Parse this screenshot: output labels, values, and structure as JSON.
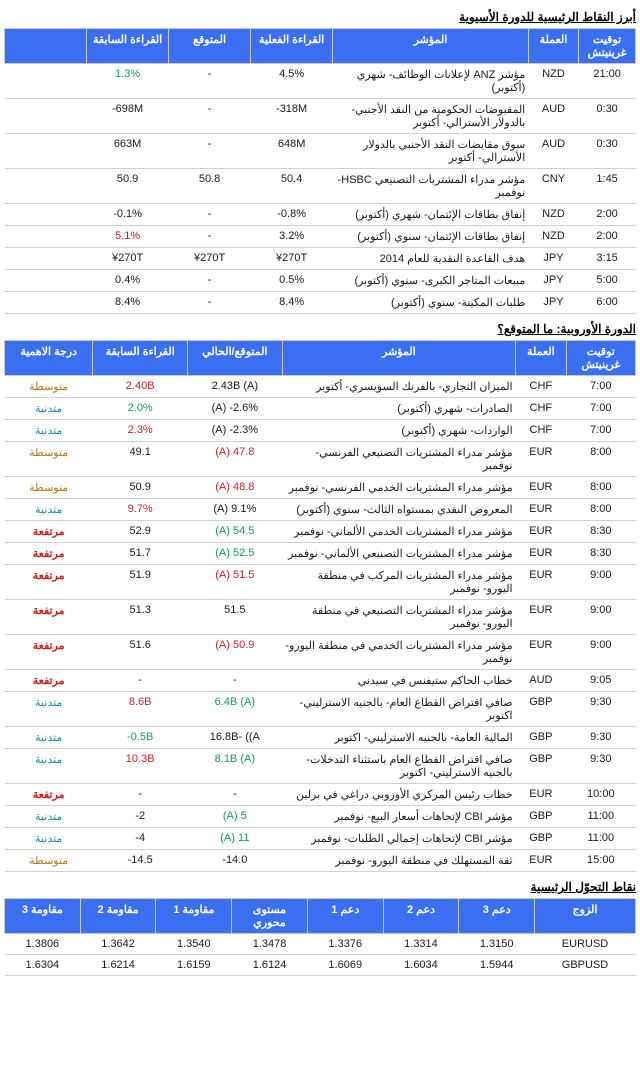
{
  "section1": {
    "title": "أبرز النقاط الرئيسية للدورة الأسيوية",
    "headers": {
      "time": "توقيت غرينيتش",
      "currency": "العملة",
      "indicator": "المؤشر",
      "actual": "القراءة الفعلية",
      "forecast": "المتوقع",
      "previous": "القراءة السابقة",
      "blank": ""
    },
    "rows": [
      {
        "time": "21:00",
        "cur": "NZD",
        "ind": "مؤشر ANZ لإعلانات الوظائف- شهري (أكتوبر)",
        "act": "4.5%",
        "fc": "-",
        "prev": "1.3%",
        "prevClass": "green",
        "blank": ""
      },
      {
        "time": "0:30",
        "cur": "AUD",
        "ind": "المقبوضات الحكومية من النقد الأجنبي- بالدولار الأسترالي- أكتوبر",
        "act": "318M-",
        "fc": "-",
        "prev": "698M-",
        "blank": ""
      },
      {
        "time": "0:30",
        "cur": "AUD",
        "ind": "سوق مقايضات النقد الأجنبي بالدولار الأسترالي- أكتوبر",
        "act": "648M",
        "fc": "-",
        "prev": "663M",
        "blank": ""
      },
      {
        "time": "1:45",
        "cur": "CNY",
        "ind": "مؤشر مدراء المشتريات التصنيعي HSBC- نوفمبر",
        "act": "50.4",
        "fc": "50.8",
        "prev": "50.9",
        "blank": ""
      },
      {
        "time": "2:00",
        "cur": "NZD",
        "ind": "إنفاق بطاقات الإئتمان- شهري (أكتوبر)",
        "act": "0.8%-",
        "fc": "-",
        "prev": "0.1%-",
        "blank": ""
      },
      {
        "time": "2:00",
        "cur": "NZD",
        "ind": "إنفاق بطاقات الإئتمان- سنوي (أكتوبر)",
        "act": "3.2%",
        "fc": "-",
        "prev": "5.1%",
        "prevClass": "red",
        "blank": ""
      },
      {
        "time": "3:15",
        "cur": "JPY",
        "ind": "هدف القاعدة النقدية للعام 2014",
        "act": "¥270T",
        "fc": "¥270T",
        "prev": "¥270T",
        "blank": ""
      },
      {
        "time": "5:00",
        "cur": "JPY",
        "ind": "مبيعات المتاجر الكبرى- سنوي (أكتوبر)",
        "act": "0.5%",
        "fc": "-",
        "prev": "0.4%",
        "blank": ""
      },
      {
        "time": "6:00",
        "cur": "JPY",
        "ind": "طلبات المكينة- سنوي (أكتوبر)",
        "act": "8.4%",
        "fc": "-",
        "prev": "8.4%",
        "blank": ""
      }
    ]
  },
  "section2": {
    "title": "الدورة الأوروبية: ما المتوقع؟",
    "headers": {
      "time": "توقيت غرينيتش",
      "currency": "العملة",
      "indicator": "المؤشر",
      "forecast": "المتوقع/الحالي",
      "previous": "القراءة السابقة",
      "importance": "درجة الاهمية"
    },
    "rows": [
      {
        "time": "7:00",
        "cur": "CHF",
        "ind": "الميزان التجاري- بالفرنك السويسري- أكتوبر",
        "fc": "2.43B (A)",
        "prev": "2.40B",
        "prevClass": "red",
        "imp": "متوسطة",
        "impClass": "brown"
      },
      {
        "time": "7:00",
        "cur": "CHF",
        "ind": "الصادرات- شهري (أكتوبر)",
        "fc": "2.6%- (A)",
        "prev": "2.0%",
        "prevClass": "green",
        "imp": "متدنية",
        "impClass": "teal"
      },
      {
        "time": "7:00",
        "cur": "CHF",
        "ind": "الواردات- شهري (أكتوبر)",
        "fc": "2.3%- (A)",
        "prev": "2.3%",
        "prevClass": "red",
        "imp": "متدنية",
        "impClass": "teal"
      },
      {
        "time": "8:00",
        "cur": "EUR",
        "ind": "مؤشر مدراء المشتريات التصنيعي الفرنسي- نوفمبر",
        "fc": "47.8 (A)",
        "fcClass": "red",
        "prev": "49.1",
        "imp": "متوسطة",
        "impClass": "brown"
      },
      {
        "time": "8:00",
        "cur": "EUR",
        "ind": "مؤشر مدراء المشتريات الخدمي الفرنسي- نوفمبر",
        "fc": "48.8 (A)",
        "fcClass": "red",
        "prev": "50.9",
        "imp": "متوسطة",
        "impClass": "brown"
      },
      {
        "time": "8:00",
        "cur": "EUR",
        "ind": "المعروض النقدي بمستواه الثالث- سنوي (أكتوبر)",
        "fc": "9.1% (A)",
        "prev": "9.7%",
        "prevClass": "red",
        "imp": "متدنية",
        "impClass": "teal"
      },
      {
        "time": "8:30",
        "cur": "EUR",
        "ind": "مؤشر مدراء المشتريات الخدمي الألماني- نوفمبر",
        "fc": "54.5 (A)",
        "fcClass": "green",
        "prev": "52.9",
        "imp": "مرتفعة",
        "impClass": "boldred"
      },
      {
        "time": "8:30",
        "cur": "EUR",
        "ind": "مؤشر مدراء المشتريات التصنيعي الألماني- نوفمبر",
        "fc": "52.5 (A)",
        "fcClass": "green",
        "prev": "51.7",
        "imp": "مرتفعة",
        "impClass": "boldred"
      },
      {
        "time": "9:00",
        "cur": "EUR",
        "ind": "مؤشر مدراء المشتريات المركب في منطقة اليورو- نوفمبر",
        "fc": "51.5 (A)",
        "fcClass": "red",
        "prev": "51.9",
        "imp": "مرتفعة",
        "impClass": "boldred"
      },
      {
        "time": "9:00",
        "cur": "EUR",
        "ind": "مؤشر مدراء المشتريات التصنيعي في منطقة اليورو- نوفمبر",
        "fc": "51.5",
        "prev": "51.3",
        "imp": "مرتفعة",
        "impClass": "boldred"
      },
      {
        "time": "9:00",
        "cur": "EUR",
        "ind": "مؤشر مدراء المشتريات الخدمي في منطقة اليورو- نوفمبر",
        "fc": "50.9 (A)",
        "fcClass": "red",
        "prev": "51.6",
        "imp": "مرتفعة",
        "impClass": "boldred"
      },
      {
        "time": "9:05",
        "cur": "AUD",
        "ind": "خطاب الحاكم ستيفنس في سيدني",
        "fc": "-",
        "prev": "-",
        "imp": "مرتفعة",
        "impClass": "boldred"
      },
      {
        "time": "9:30",
        "cur": "GBP",
        "ind": "صافي اقتراض القطاع العام- بالجنيه الاسترليني- اكتوبر",
        "fc": "6.4B (A)",
        "fcClass": "green",
        "prev": "8.6B",
        "prevClass": "red",
        "imp": "متدنية",
        "impClass": "teal"
      },
      {
        "time": "9:30",
        "cur": "GBP",
        "ind": "المالية العامة- بالجنيه الاسترليني- اكتوبر",
        "fc": "16.8B- ((A",
        "prev": "0.5B-",
        "prevClass": "green",
        "imp": "متدنية",
        "impClass": "teal"
      },
      {
        "time": "9:30",
        "cur": "GBP",
        "ind": "صافي اقتراض القطاع العام باستثناء التدخلات- بالجنيه الاسترليني- اكتوبر",
        "fc": "8.1B (A)",
        "fcClass": "green",
        "prev": "10.3B",
        "prevClass": "red",
        "imp": "متدنية",
        "impClass": "teal"
      },
      {
        "time": "10:00",
        "cur": "EUR",
        "ind": "خطاب رئيس المركزي الأوروبي دراغي في برلين",
        "fc": "-",
        "prev": "-",
        "imp": "مرتفعة",
        "impClass": "boldred"
      },
      {
        "time": "11:00",
        "cur": "GBP",
        "ind": "مؤشر CBI لإتجاهات أسعار البيع- نوفمبر",
        "fc": "5 (A)",
        "fcClass": "green",
        "prev": "2-",
        "imp": "متدنية",
        "impClass": "teal"
      },
      {
        "time": "11:00",
        "cur": "GBP",
        "ind": "مؤشر CBI لإتجاهات إجمالي الطلبات- نوفمبر",
        "fc": "11 (A)",
        "fcClass": "green",
        "prev": "4-",
        "imp": "متدنية",
        "impClass": "teal"
      },
      {
        "time": "15:00",
        "cur": "EUR",
        "ind": "ثقة المستهلك في منطقة اليورو- نوفمبر",
        "fc": "14.0-",
        "prev": "14.5-",
        "imp": "متوسطة",
        "impClass": "brown"
      }
    ]
  },
  "section3": {
    "title": "نقاط التحوّل الرئيسية",
    "headers": {
      "pair": "الزوج",
      "s3": "دعم 3",
      "s2": "دعم 2",
      "s1": "دعم 1",
      "pivot": "مستوى محوري",
      "r1": "مقاومة 1",
      "r2": "مقاومة 2",
      "r3": "مقاومة 3"
    },
    "rows": [
      {
        "pair": "EURUSD",
        "s3": "1.3150",
        "s2": "1.3314",
        "s1": "1.3376",
        "pivot": "1.3478",
        "r1": "1.3540",
        "r2": "1.3642",
        "r3": "1.3806"
      },
      {
        "pair": "GBPUSD",
        "s3": "1.5944",
        "s2": "1.6034",
        "s1": "1.6069",
        "pivot": "1.6124",
        "r1": "1.6159",
        "r2": "1.6214",
        "r3": "1.6304"
      }
    ]
  }
}
